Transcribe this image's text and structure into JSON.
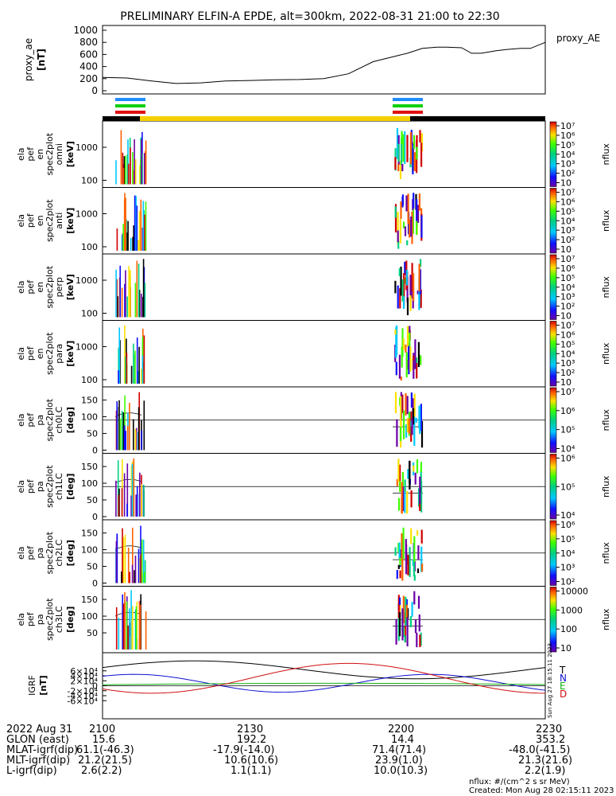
{
  "title": "PRELIMINARY ELFIN-A EPDE, alt=300km, 2022-08-31 21:00 to 22:30",
  "colors": {
    "black": "#000000",
    "yellow": "#f5d000",
    "blue": "#1e8cff",
    "green": "#10d010",
    "red": "#e01010",
    "T": "#000000",
    "N": "#1010d0",
    "E": "#10b010",
    "D": "#d01010"
  },
  "chart_data": [
    {
      "type": "line",
      "name": "proxy_ae",
      "ylabel": "proxy_ae",
      "yunit": "[nT]",
      "legend": "proxy_AE",
      "ylim": [
        0,
        1000
      ],
      "yticks": [
        "0",
        "200",
        "400",
        "600",
        "800",
        "1000"
      ],
      "x": [
        0,
        5,
        10,
        15,
        20,
        25,
        30,
        35,
        40,
        45,
        50,
        55,
        60,
        62,
        65,
        68,
        70,
        73,
        75,
        77,
        80,
        82,
        85,
        87,
        90
      ],
      "values": [
        220,
        210,
        160,
        120,
        130,
        160,
        170,
        180,
        185,
        200,
        280,
        480,
        580,
        620,
        700,
        720,
        720,
        710,
        620,
        620,
        660,
        680,
        700,
        700,
        800
      ]
    },
    {
      "type": "heatmap",
      "name": "spectrogram-1",
      "ylabel": [
        "ela",
        "pef",
        "en",
        "spec2plot",
        "omni"
      ],
      "yunit": "[keV]",
      "yticks": [
        "100",
        "1000"
      ],
      "cbar": "nflux",
      "cbar_ticks": [
        "10",
        "10²",
        "10³",
        "10⁴",
        "10⁵",
        "10⁶",
        "10⁷"
      ]
    },
    {
      "type": "heatmap",
      "name": "spectrogram-2",
      "ylabel": [
        "ela",
        "pef",
        "en",
        "spec2plot",
        "anti"
      ],
      "yunit": "[keV]",
      "yticks": [
        "100",
        "1000"
      ],
      "cbar": "nflux",
      "cbar_ticks": [
        "10",
        "10²",
        "10³",
        "10⁴",
        "10⁵",
        "10⁶",
        "10⁷"
      ]
    },
    {
      "type": "heatmap",
      "name": "spectrogram-3",
      "ylabel": [
        "ela",
        "pef",
        "en",
        "spec2plot",
        "perp"
      ],
      "yunit": "[keV]",
      "yticks": [
        "100",
        "1000"
      ],
      "cbar": "nflux",
      "cbar_ticks": [
        "10",
        "10²",
        "10³",
        "10⁴",
        "10⁵",
        "10⁶",
        "10⁷"
      ]
    },
    {
      "type": "heatmap",
      "name": "spectrogram-4",
      "ylabel": [
        "ela",
        "pef",
        "en",
        "spec2plot",
        "para"
      ],
      "yunit": "[keV]",
      "yticks": [
        "100",
        "1000"
      ],
      "cbar": "nflux",
      "cbar_ticks": [
        "10",
        "10²",
        "10³",
        "10⁴",
        "10⁵",
        "10⁶",
        "10⁷"
      ]
    },
    {
      "type": "heatmap",
      "name": "pitch-1",
      "ylabel": [
        "ela",
        "pef",
        "pa",
        "spec2plot",
        "ch0LC"
      ],
      "yunit": "[deg]",
      "yticks": [
        "0",
        "50",
        "100",
        "150"
      ],
      "cbar": "nflux",
      "cbar_ticks": [
        "10⁴",
        "10⁵",
        "10⁶",
        "10⁷"
      ]
    },
    {
      "type": "heatmap",
      "name": "pitch-2",
      "ylabel": [
        "ela",
        "pef",
        "pa",
        "spec2plot",
        "ch1LC"
      ],
      "yunit": "[deg]",
      "yticks": [
        "0",
        "50",
        "100",
        "150"
      ],
      "cbar": "nflux",
      "cbar_ticks": [
        "10⁴",
        "10⁵",
        "10⁶"
      ]
    },
    {
      "type": "heatmap",
      "name": "pitch-3",
      "ylabel": [
        "ela",
        "pef",
        "pa",
        "spec2plot",
        "ch2LC"
      ],
      "yunit": "[deg]",
      "yticks": [
        "0",
        "50",
        "100",
        "150"
      ],
      "cbar": "nflux",
      "cbar_ticks": [
        "10²",
        "10³",
        "10⁴",
        "10⁵",
        "10⁶"
      ]
    },
    {
      "type": "heatmap",
      "name": "pitch-4",
      "ylabel": [
        "ela",
        "pef",
        "pa",
        "spec2plot",
        "ch3LC"
      ],
      "yunit": "[deg]",
      "yticks": [
        "50",
        "100",
        "150"
      ],
      "cbar": "nflux",
      "cbar_ticks": [
        "10",
        "100",
        "1000",
        "10000"
      ]
    },
    {
      "type": "line",
      "name": "igrf",
      "ylabel": "IGRF",
      "yunit": "[nT]",
      "yticks": [
        "-6×10⁴",
        "-4×10⁴",
        "-2×10⁴",
        "0",
        "2×10⁴",
        "4×10⁴",
        "6×10⁴"
      ],
      "legend": [
        "T",
        "N",
        "E",
        "D"
      ]
    }
  ],
  "orbit": {
    "headers": [
      "2022 Aug 31",
      "GLON (east)",
      "MLAT-igrf(dip)",
      "MLT-igrf(dip)",
      "L-igrf(dip)"
    ],
    "columns": [
      {
        "time": "2100",
        "glon": "15.6",
        "mlat": "61.1(-46.3)",
        "mlt": "21.2(21.5)",
        "l": "2.6(2.2)"
      },
      {
        "time": "2130",
        "glon": "192.2",
        "mlat": "-17.9(-14.0)",
        "mlt": "10.6(10.6)",
        "l": "1.1(1.1)"
      },
      {
        "time": "2200",
        "glon": "14.4",
        "mlat": "71.4(71.4)",
        "mlt": "23.9(1.0)",
        "l": "10.0(10.3)"
      },
      {
        "time": "2230",
        "glon": "353.2",
        "mlat": "-48.0(-41.5)",
        "mlt": "21.3(21.6)",
        "l": "2.2(1.9)"
      }
    ]
  },
  "footer": {
    "units": "nflux: #/(cm^2 s sr MeV)",
    "created": "Created: Mon Aug 28 02:15:11 2023",
    "side_stamp": "Sun Aug 27 18:15:11 2023"
  }
}
